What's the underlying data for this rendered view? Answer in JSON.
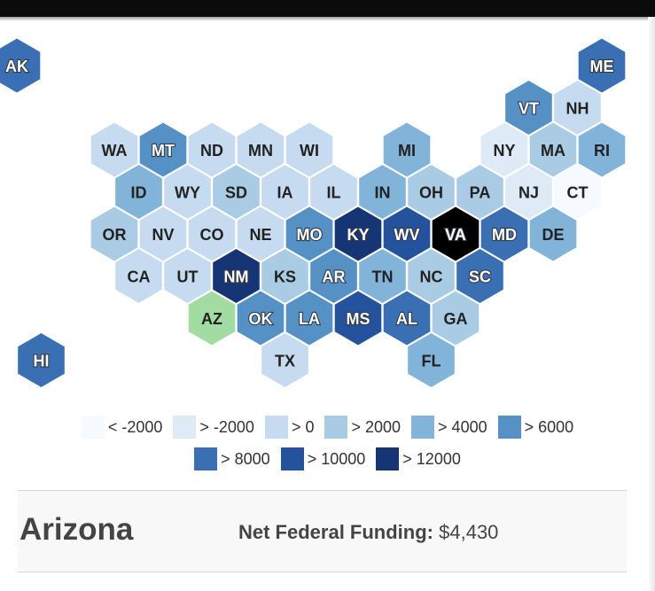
{
  "map": {
    "states": [
      {
        "abbr": "AK",
        "bin": 6
      },
      {
        "abbr": "ME",
        "bin": 6
      },
      {
        "abbr": "VT",
        "bin": 5
      },
      {
        "abbr": "NH",
        "bin": 2
      },
      {
        "abbr": "WA",
        "bin": 2
      },
      {
        "abbr": "MT",
        "bin": 5
      },
      {
        "abbr": "ND",
        "bin": 2
      },
      {
        "abbr": "MN",
        "bin": 2
      },
      {
        "abbr": "WI",
        "bin": 2
      },
      {
        "abbr": "MI",
        "bin": 4
      },
      {
        "abbr": "NY",
        "bin": 1
      },
      {
        "abbr": "MA",
        "bin": 3
      },
      {
        "abbr": "RI",
        "bin": 4
      },
      {
        "abbr": "ID",
        "bin": 4
      },
      {
        "abbr": "WY",
        "bin": 2
      },
      {
        "abbr": "SD",
        "bin": 3
      },
      {
        "abbr": "IA",
        "bin": 2
      },
      {
        "abbr": "IL",
        "bin": 2
      },
      {
        "abbr": "IN",
        "bin": 4
      },
      {
        "abbr": "OH",
        "bin": 3
      },
      {
        "abbr": "PA",
        "bin": 3
      },
      {
        "abbr": "NJ",
        "bin": 1
      },
      {
        "abbr": "CT",
        "bin": 0
      },
      {
        "abbr": "OR",
        "bin": 3
      },
      {
        "abbr": "NV",
        "bin": 2
      },
      {
        "abbr": "CO",
        "bin": 2
      },
      {
        "abbr": "NE",
        "bin": 2
      },
      {
        "abbr": "MO",
        "bin": 5
      },
      {
        "abbr": "KY",
        "bin": 8
      },
      {
        "abbr": "WV",
        "bin": 7
      },
      {
        "abbr": "VA",
        "bin": 9
      },
      {
        "abbr": "MD",
        "bin": 6
      },
      {
        "abbr": "DE",
        "bin": 4
      },
      {
        "abbr": "CA",
        "bin": 2
      },
      {
        "abbr": "UT",
        "bin": 2
      },
      {
        "abbr": "NM",
        "bin": 8
      },
      {
        "abbr": "KS",
        "bin": 3
      },
      {
        "abbr": "AR",
        "bin": 5
      },
      {
        "abbr": "TN",
        "bin": 4
      },
      {
        "abbr": "NC",
        "bin": 3
      },
      {
        "abbr": "SC",
        "bin": 6
      },
      {
        "abbr": "AZ",
        "bin": "selected"
      },
      {
        "abbr": "OK",
        "bin": 5
      },
      {
        "abbr": "LA",
        "bin": 5
      },
      {
        "abbr": "MS",
        "bin": 7
      },
      {
        "abbr": "AL",
        "bin": 6
      },
      {
        "abbr": "GA",
        "bin": 3
      },
      {
        "abbr": "HI",
        "bin": 6
      },
      {
        "abbr": "TX",
        "bin": 2
      },
      {
        "abbr": "FL",
        "bin": 4
      }
    ],
    "selected_color": "#a3dca2"
  },
  "legend": {
    "row1": [
      {
        "label": "< -2000",
        "color": "#f6fafe"
      },
      {
        "label": "> -2000",
        "color": "#deeaf6"
      },
      {
        "label": "> 0",
        "color": "#c6dbef"
      },
      {
        "label": "> 2000",
        "color": "#a9cbe3"
      },
      {
        "label": "> 4000",
        "color": "#82b3d8"
      },
      {
        "label": "> 6000",
        "color": "#5591c4"
      }
    ],
    "row2": [
      {
        "label": "> 8000",
        "color": "#3b6fb3"
      },
      {
        "label": "> 10000",
        "color": "#24529c"
      },
      {
        "label": "> 12000",
        "color": "#163574"
      }
    ]
  },
  "info": {
    "state_name": "Arizona",
    "funding_label": "Net Federal Funding:",
    "funding_value": "$4,430"
  }
}
